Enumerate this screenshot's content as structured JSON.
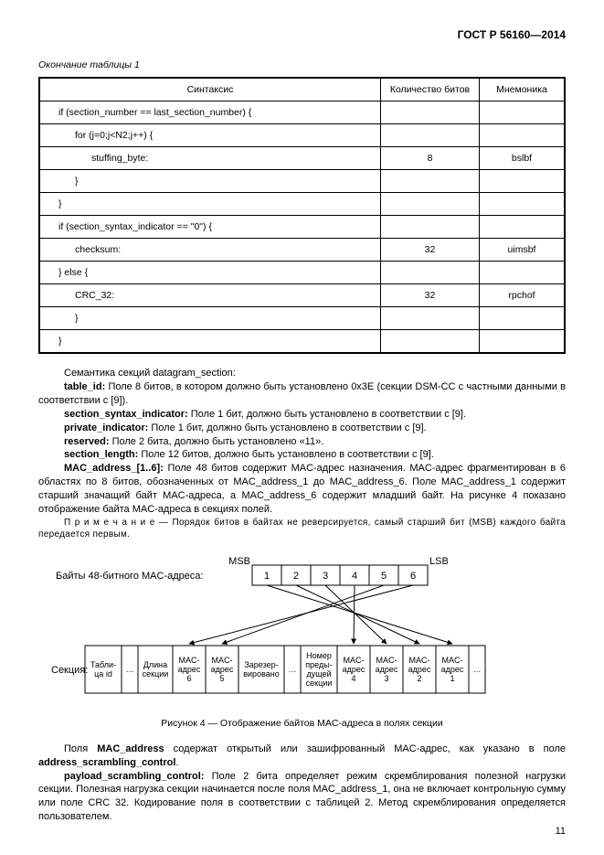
{
  "header": {
    "standard": "ГОСТ Р 56160—2014"
  },
  "table": {
    "caption": "Окончание таблицы 1",
    "headers": [
      "Синтаксис",
      "Количество битов",
      "Мнемоника"
    ],
    "rows": [
      {
        "syntax": "if (section_number == last_section_number) {",
        "bits": "",
        "mnem": "",
        "indent": 1
      },
      {
        "syntax": "for (j=0;j<N2;j++) {",
        "bits": "",
        "mnem": "",
        "indent": 2
      },
      {
        "syntax": "stuffing_byte:",
        "bits": "8",
        "mnem": "bslbf",
        "indent": 3
      },
      {
        "syntax": "}",
        "bits": "",
        "mnem": "",
        "indent": 2
      },
      {
        "syntax": "}",
        "bits": "",
        "mnem": "",
        "indent": 1
      },
      {
        "syntax": "if (section_syntax_indicator == \"0\") {",
        "bits": "",
        "mnem": "",
        "indent": 1
      },
      {
        "syntax": "checksum:",
        "bits": "32",
        "mnem": "uimsbf",
        "indent": 2
      },
      {
        "syntax": "} else {",
        "bits": "",
        "mnem": "",
        "indent": 1
      },
      {
        "syntax": "CRC_32:",
        "bits": "32",
        "mnem": "rpchof",
        "indent": 2
      },
      {
        "syntax": "}",
        "bits": "",
        "mnem": "",
        "indent": 2
      },
      {
        "syntax": "}",
        "bits": "",
        "mnem": "",
        "indent": 1
      }
    ]
  },
  "semantics": {
    "intro": "Семантика секций datagram_section:",
    "table_id": {
      "label": "table_id:",
      "text": " Поле 8 битов, в котором должно быть установлено 0x3E (секции DSM-CC с частными данными в соответствии с [9])."
    },
    "ssi": {
      "label": "section_syntax_indicator:",
      "text": " Поле 1 бит, должно быть установлено в соответствии с [9]."
    },
    "pi": {
      "label": "private_indicator:",
      "text": " Поле 1 бит, должно быть установлено в соответствии с [9]."
    },
    "reserved": {
      "label": "reserved:",
      "text": " Поле 2 бита, должно быть установлено «11»."
    },
    "slen": {
      "label": "section_length:",
      "text": " Поле 12 битов, должно быть установлено в соответствии с [9]."
    },
    "mac": {
      "label": "MAC_address_[1..6]:",
      "text": " Поле 48 битов содержит MAC-адрес назначения. MAC-адрес фрагментирован в 6 областях по 8 битов, обозначенных от MAC_address_1 до MAC_address_6. Поле MAC_address_1 содержит старший значащий байт MAC-адреса, а MAC_address_6 содержит младший байт. На рисунке 4 показано отображение байта MAC-адреса в секциях полей."
    },
    "note_label": "П р и м е ч а н и е",
    "note": " — Порядок битов в байтах не реверсируется, самый старший бит (MSB) каждого байта передается первым."
  },
  "figure": {
    "msb": "MSB",
    "lsb": "LSB",
    "bytes_label": "Байты 48-битного MAC-адреса:",
    "byte_cells": [
      "1",
      "2",
      "3",
      "4",
      "5",
      "6"
    ],
    "section_label": "Секция:",
    "section_cells": [
      "Табли-\nца id",
      "…",
      "Длина\nсекции",
      "MAC-\nадрес\n6",
      "MAC-\nадрес\n5",
      "Зарезер-\nвировано",
      "…",
      "Номер\nпреды-\nдущей\nсекции",
      "MAC-\nадрес\n4",
      "MAC-\nадрес\n3",
      "MAC-\nадрес\n2",
      "MAC-\nадрес\n1",
      "…"
    ],
    "caption": "Рисунок 4 — Отображение байтов MAC-адреса в полях секции"
  },
  "after_fig": {
    "p1": {
      "pre": "Поля ",
      "b1": "MAC_address",
      "mid": " содержат открытый или зашифрованный MAC-адрес, как указано в поле ",
      "b2": "address_scrambling_control",
      "post": "."
    },
    "p2": {
      "label": "payload_scrambling_control:",
      "text": " Поле 2 бита определяет режим скремблирования полезной нагрузки секции. Полезная нагрузка секции начинается после поля MAC_address_1, она не включает контрольную сумму или поле CRC 32. Кодирование поля в соответствии с таблицей 2. Метод скремблирования определяется пользователем."
    }
  },
  "page_number": "11",
  "style": {
    "stroke": "#000000",
    "cell_bg": "#ffffff"
  }
}
